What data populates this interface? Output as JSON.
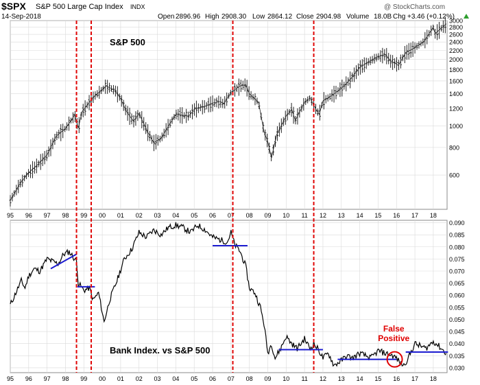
{
  "header": {
    "symbol": "$SPX",
    "name": "S&P 500 Large Cap Index",
    "exchange": "INDX",
    "date": "14-Sep-2018",
    "open_label": "Open",
    "open": "2896.96",
    "high_label": "High",
    "high": "2908.30",
    "low_label": "Low",
    "low": "2864.12",
    "close_label": "Close",
    "close": "2904.98",
    "volume_label": "Volume",
    "volume": "18.0B",
    "chg_label": "Chg",
    "chg": "+3.46 (+0.12%)",
    "watermark": "@ StockCharts.com"
  },
  "colors": {
    "price": "#222222",
    "ratio": "#000000",
    "vertical_markers": "#e00000",
    "support_lines": "#1b1bd0",
    "annotation": "#e00000",
    "grid": "#d9d9d9",
    "chg_arrow": "#2e9e2e"
  },
  "chart_data": [
    {
      "type": "ohlc",
      "title": "S&P 500",
      "y_scale": "log",
      "ylim": [
        420,
        3000
      ],
      "xlim": [
        1995.0,
        2018.75
      ],
      "x_tick_labels": [
        "95",
        "96",
        "97",
        "98",
        "99",
        "00",
        "01",
        "02",
        "03",
        "04",
        "05",
        "06",
        "07",
        "08",
        "09",
        "10",
        "11",
        "12",
        "13",
        "14",
        "15",
        "16",
        "17",
        "18"
      ],
      "x_ticks": [
        1995,
        1996,
        1997,
        1998,
        1999,
        2000,
        2001,
        2002,
        2003,
        2004,
        2005,
        2006,
        2007,
        2008,
        2009,
        2010,
        2011,
        2012,
        2013,
        2014,
        2015,
        2016,
        2017,
        2018
      ],
      "y_ticks": [
        600,
        800,
        1000,
        1200,
        1400,
        1600,
        1800,
        2000,
        2200,
        2400,
        2600,
        2800,
        3000
      ],
      "y_tick_labels": [
        "600",
        "800",
        "1000",
        "1200",
        "1400",
        "1600",
        "1800",
        "2000",
        "2200",
        "2400",
        "2600",
        "2800",
        "3000"
      ],
      "grid": true,
      "series": [
        {
          "x": [
            1995.0,
            1995.5,
            1996.0,
            1996.5,
            1997.0,
            1997.5,
            1998.0,
            1998.5,
            1998.7,
            1998.9,
            1999.5,
            2000.0,
            2000.2,
            2000.7,
            2001.0,
            2001.3,
            2001.7,
            2002.0,
            2002.5,
            2002.8,
            2003.2,
            2003.6,
            2004.0,
            2004.7,
            2005.0,
            2005.6,
            2006.0,
            2006.4,
            2006.6,
            2007.0,
            2007.5,
            2007.8,
            2008.0,
            2008.5,
            2008.8,
            2009.0,
            2009.2,
            2009.5,
            2010.0,
            2010.3,
            2010.5,
            2011.0,
            2011.3,
            2011.6,
            2011.8,
            2012.0,
            2012.4,
            2013.0,
            2013.5,
            2014.0,
            2014.5,
            2015.0,
            2015.4,
            2015.7,
            2016.0,
            2016.1,
            2016.5,
            2017.0,
            2017.5,
            2018.0,
            2018.1,
            2018.7
          ],
          "y": [
            460,
            545,
            615,
            670,
            740,
            900,
            975,
            1120,
            980,
            1160,
            1350,
            1460,
            1520,
            1450,
            1330,
            1170,
            1050,
            1140,
            930,
            840,
            880,
            1000,
            1130,
            1110,
            1190,
            1230,
            1270,
            1290,
            1260,
            1420,
            1520,
            1540,
            1400,
            1280,
            940,
            850,
            720,
            920,
            1110,
            1190,
            1060,
            1280,
            1340,
            1200,
            1130,
            1300,
            1360,
            1480,
            1630,
            1840,
            1960,
            2060,
            2110,
            1960,
            1910,
            1880,
            2150,
            2260,
            2420,
            2800,
            2620,
            2900
          ]
        }
      ]
    },
    {
      "type": "line",
      "title": "Bank Index. vs S&P 500",
      "ylim": [
        0.028,
        0.091
      ],
      "xlim": [
        1995.0,
        2018.75
      ],
      "x_tick_labels": [
        "95",
        "96",
        "97",
        "98",
        "99",
        "00",
        "01",
        "02",
        "03",
        "04",
        "05",
        "06",
        "07",
        "08",
        "09",
        "10",
        "11",
        "12",
        "13",
        "14",
        "15",
        "16",
        "17",
        "18"
      ],
      "x_ticks": [
        1995,
        1996,
        1997,
        1998,
        1999,
        2000,
        2001,
        2002,
        2003,
        2004,
        2005,
        2006,
        2007,
        2008,
        2009,
        2010,
        2011,
        2012,
        2013,
        2014,
        2015,
        2016,
        2017,
        2018
      ],
      "y_ticks": [
        0.03,
        0.035,
        0.04,
        0.045,
        0.05,
        0.055,
        0.06,
        0.065,
        0.07,
        0.075,
        0.08,
        0.085,
        0.09
      ],
      "y_tick_labels": [
        "0.030",
        "0.035",
        "0.040",
        "0.045",
        "0.050",
        "0.055",
        "0.060",
        "0.065",
        "0.070",
        "0.075",
        "0.080",
        "0.085",
        "0.090"
      ],
      "grid": true,
      "series": [
        {
          "x": [
            1995.0,
            1995.3,
            1995.6,
            1995.8,
            1996.0,
            1996.3,
            1996.6,
            1997.0,
            1997.3,
            1997.6,
            1997.9,
            1998.2,
            1998.4,
            1998.6,
            1998.7,
            1999.0,
            1999.3,
            1999.5,
            1999.8,
            2000.0,
            2000.1,
            2000.4,
            2000.8,
            2001.2,
            2001.6,
            2002.0,
            2002.4,
            2002.8,
            2003.2,
            2003.6,
            2004.0,
            2004.4,
            2004.8,
            2005.2,
            2005.6,
            2006.0,
            2006.4,
            2006.8,
            2007.0,
            2007.2,
            2007.5,
            2007.8,
            2008.0,
            2008.3,
            2008.6,
            2008.8,
            2009.0,
            2009.2,
            2009.4,
            2009.7,
            2010.0,
            2010.3,
            2010.6,
            2011.0,
            2011.3,
            2011.5,
            2011.8,
            2012.0,
            2012.3,
            2012.6,
            2013.0,
            2013.3,
            2013.6,
            2014.0,
            2014.3,
            2014.6,
            2015.0,
            2015.4,
            2015.8,
            2016.0,
            2016.2,
            2016.4,
            2016.7,
            2017.0,
            2017.3,
            2017.6,
            2018.0,
            2018.3,
            2018.7
          ],
          "y": [
            0.056,
            0.061,
            0.066,
            0.063,
            0.068,
            0.071,
            0.07,
            0.075,
            0.074,
            0.073,
            0.077,
            0.078,
            0.076,
            0.074,
            0.065,
            0.062,
            0.063,
            0.058,
            0.061,
            0.053,
            0.049,
            0.058,
            0.066,
            0.075,
            0.079,
            0.086,
            0.084,
            0.087,
            0.085,
            0.088,
            0.089,
            0.088,
            0.086,
            0.089,
            0.087,
            0.084,
            0.083,
            0.082,
            0.086,
            0.081,
            0.078,
            0.072,
            0.063,
            0.061,
            0.055,
            0.048,
            0.036,
            0.04,
            0.034,
            0.038,
            0.043,
            0.04,
            0.038,
            0.042,
            0.038,
            0.04,
            0.037,
            0.034,
            0.036,
            0.031,
            0.033,
            0.035,
            0.034,
            0.036,
            0.035,
            0.034,
            0.037,
            0.036,
            0.035,
            0.034,
            0.032,
            0.031,
            0.035,
            0.04,
            0.039,
            0.038,
            0.041,
            0.039,
            0.036
          ]
        }
      ],
      "support_lines": [
        {
          "x": [
            1997.2,
            1998.6
          ],
          "y": [
            0.071,
            0.077
          ]
        },
        {
          "x": [
            1998.65,
            1999.6
          ],
          "y": [
            0.0635,
            0.0635
          ]
        },
        {
          "x": [
            2006.0,
            2007.9
          ],
          "y": [
            0.0805,
            0.0805
          ]
        },
        {
          "x": [
            2009.6,
            2012.0
          ],
          "y": [
            0.0375,
            0.0375
          ]
        },
        {
          "x": [
            2012.8,
            2016.0
          ],
          "y": [
            0.0335,
            0.0335
          ]
        },
        {
          "x": [
            2016.5,
            2018.8
          ],
          "y": [
            0.0365,
            0.0365
          ]
        }
      ],
      "annotations": [
        {
          "text": "False",
          "x": 2015.85,
          "y": 0.045
        },
        {
          "text": "Positive",
          "x": 2015.85,
          "y": 0.041
        },
        {
          "marker": "circle",
          "x": 2015.9,
          "y": 0.0335
        }
      ]
    }
  ],
  "vertical_markers": [
    1998.6,
    1999.4,
    2007.1,
    2011.5
  ]
}
